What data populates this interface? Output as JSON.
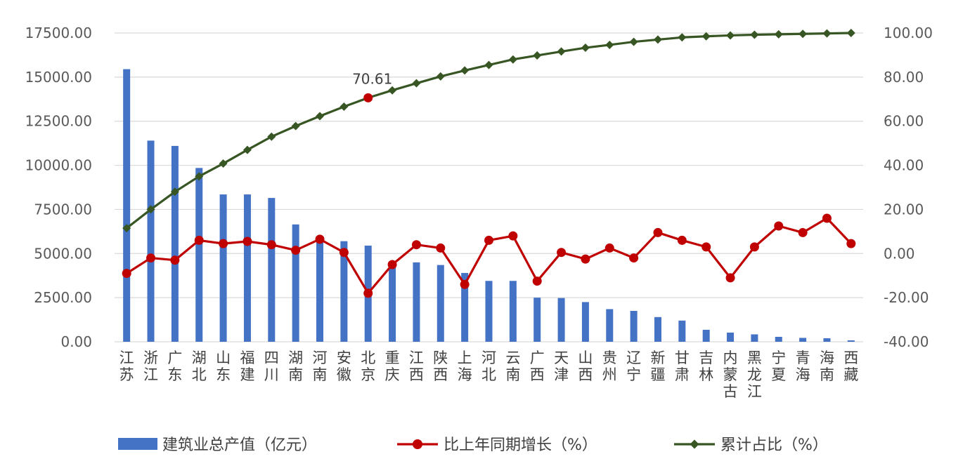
{
  "chart_data": {
    "type": "bar+line",
    "categories": [
      "江苏",
      "浙江",
      "广东",
      "湖北",
      "山东",
      "福建",
      "四川",
      "湖南",
      "河南",
      "安徽",
      "北京",
      "重庆",
      "江西",
      "陕西",
      "上海",
      "河北",
      "云南",
      "广西",
      "天津",
      "山西",
      "贵州",
      "辽宁",
      "新疆",
      "甘肃",
      "吉林",
      "内蒙古",
      "黑龙江",
      "宁夏",
      "青海",
      "海南",
      "西藏"
    ],
    "series": [
      {
        "name": "建筑业总产值（亿元）",
        "type": "bar",
        "axis": "left",
        "color": "#4472c4",
        "values": [
          15450,
          11400,
          11100,
          9850,
          8350,
          8350,
          8150,
          6650,
          5950,
          5700,
          5450,
          4550,
          4500,
          4350,
          3900,
          3450,
          3450,
          2500,
          2480,
          2250,
          1850,
          1750,
          1400,
          1200,
          680,
          520,
          420,
          280,
          220,
          200,
          80
        ]
      },
      {
        "name": "比上年同期增长（%）",
        "type": "line",
        "axis": "right",
        "color": "#c00000",
        "values": [
          -9,
          -2,
          -3,
          6,
          4.5,
          5.5,
          4,
          1.5,
          6.5,
          0.5,
          -18,
          -5,
          4,
          2.5,
          -14,
          6,
          8,
          -12.5,
          0.5,
          -2.5,
          2.5,
          -2,
          9.5,
          6,
          3,
          -11,
          3,
          12.5,
          9.5,
          16,
          4.5
        ]
      },
      {
        "name": "累计占比（%）",
        "type": "line",
        "axis": "right",
        "color": "#375623",
        "values": [
          11.5,
          20,
          28,
          35,
          40.8,
          47,
          53,
          57.8,
          62.3,
          66.6,
          70.61,
          74,
          77.2,
          80.3,
          83,
          85.5,
          88,
          89.8,
          91.6,
          93.3,
          94.6,
          96,
          97,
          98,
          98.5,
          98.9,
          99.2,
          99.4,
          99.6,
          99.8,
          100
        ]
      }
    ],
    "y_left": {
      "min": 0,
      "max": 17500,
      "ticks": [
        "0.00",
        "2500.00",
        "5000.00",
        "7500.00",
        "10000.00",
        "12500.00",
        "15000.00",
        "17500.00"
      ]
    },
    "y_right": {
      "min": -40,
      "max": 100,
      "ticks": [
        "-40.00",
        "-20.00",
        "0.00",
        "20.00",
        "40.00",
        "60.00",
        "80.00",
        "100.00"
      ]
    },
    "annotation": {
      "series": 2,
      "index": 10,
      "text": "70.61",
      "color": "#c00000"
    },
    "grid": true,
    "legend_position": "bottom"
  }
}
